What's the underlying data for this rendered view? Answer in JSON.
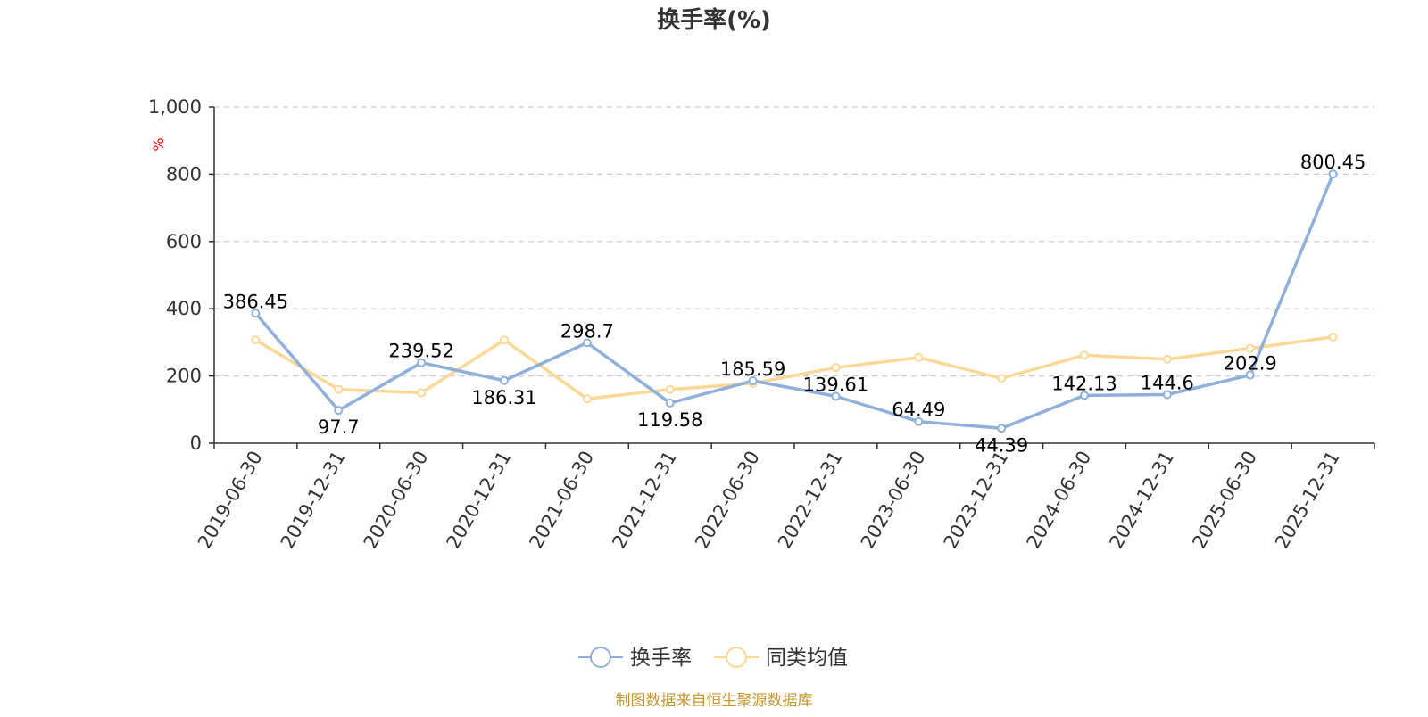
{
  "chart_data": {
    "type": "line",
    "title": "换手率(%)",
    "ylabel": "%",
    "xlabel": "",
    "ylim": [
      0,
      1000
    ],
    "yticks": [
      0,
      200,
      400,
      600,
      800,
      1000
    ],
    "ytick_labels": [
      "0",
      "200",
      "400",
      "600",
      "800",
      "1,000"
    ],
    "categories": [
      "2019-06-30",
      "2019-12-31",
      "2020-06-30",
      "2020-12-31",
      "2021-06-30",
      "2021-12-31",
      "2022-06-30",
      "2022-12-31",
      "2023-06-30",
      "2023-12-31",
      "2024-06-30",
      "2024-12-31",
      "2025-06-30",
      "2025-12-31"
    ],
    "series": [
      {
        "name": "换手率",
        "color": "#8eb0db",
        "values": [
          386.45,
          97.7,
          239.52,
          186.31,
          298.7,
          119.58,
          185.59,
          139.61,
          64.49,
          44.39,
          142.13,
          144.6,
          202.9,
          800.45
        ],
        "labels": [
          "386.45",
          "97.7",
          "239.52",
          "186.31",
          "298.7",
          "119.58",
          "185.59",
          "139.61",
          "64.49",
          "44.39",
          "142.13",
          "144.6",
          "202.9",
          "800.45"
        ]
      },
      {
        "name": "同类均值",
        "color": "#fcd896",
        "values": [
          307,
          160,
          150,
          307,
          132,
          160,
          178,
          225,
          255,
          193,
          262,
          250,
          282,
          316
        ]
      }
    ],
    "legend_position": "bottom",
    "source": "制图数据来自恒生聚源数据库",
    "source_color": "#c8962e"
  }
}
